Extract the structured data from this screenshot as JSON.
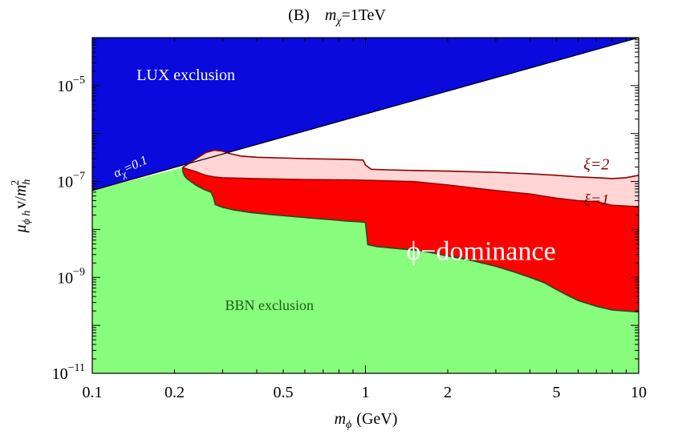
{
  "chart_data": {
    "type": "area",
    "title": "(B)   m_χ=1TeV",
    "title_parts": {
      "prefix": "(B)",
      "var": "m",
      "sub": "χ",
      "suffix": "=1TeV"
    },
    "xlabel": "m_ϕ (GeV)",
    "xlabel_parts": {
      "var": "m",
      "sub": "ϕ",
      "unit": "(GeV)"
    },
    "ylabel": "μ_ϕh v/m_h^2",
    "ylabel_parts": {
      "mu": "μ",
      "sub": "ϕ h",
      "mid": "v/",
      "m": "m",
      "hsub": "h",
      "sup": "2"
    },
    "xscale": "log",
    "yscale": "log",
    "xlim": [
      0.1,
      10
    ],
    "ylim": [
      1e-11,
      0.0001
    ],
    "x_ticks": [
      {
        "value": 0.1,
        "label": "0.1"
      },
      {
        "value": 0.2,
        "label": "0.2"
      },
      {
        "value": 0.5,
        "label": "0.5"
      },
      {
        "value": 1,
        "label": "1"
      },
      {
        "value": 2,
        "label": "2"
      },
      {
        "value": 5,
        "label": "5"
      },
      {
        "value": 10,
        "label": "10"
      }
    ],
    "y_ticks": [
      {
        "value": 1e-11,
        "base": "10",
        "exp": "−11"
      },
      {
        "value": 1e-09,
        "base": "10",
        "exp": "−9"
      },
      {
        "value": 1e-07,
        "base": "10",
        "exp": "−7"
      },
      {
        "value": 1e-05,
        "base": "10",
        "exp": "−5"
      }
    ],
    "lux_boundary": {
      "x": [
        0.1,
        10
      ],
      "y": [
        6.5e-08,
        0.0001
      ]
    },
    "bbn_boundary": {
      "x": [
        0.2139,
        0.215,
        0.218,
        0.222,
        0.227,
        0.232,
        0.238,
        0.245,
        0.253,
        0.262,
        0.272,
        0.278,
        0.282,
        0.29,
        0.3,
        0.33,
        0.38,
        0.45,
        0.55,
        0.65,
        0.75,
        0.85,
        0.95,
        1.0,
        1.02,
        1.1,
        1.3,
        1.6,
        2.0,
        2.5,
        3.0,
        3.5,
        4.0,
        4.5,
        5.0,
        5.5,
        6.0,
        7.0,
        8.0,
        10.0
      ],
      "y": [
        1.95e-07,
        1.55e-07,
        1.3e-07,
        1.15e-07,
        1.05e-07,
        9.5e-08,
        8.6e-08,
        7.8e-08,
        7.1e-08,
        6.5e-08,
        6e-08,
        4.6e-08,
        3.3e-08,
        3.1e-08,
        2.9e-08,
        2.55e-08,
        2.25e-08,
        2.05e-08,
        1.85e-08,
        1.7e-08,
        1.6e-08,
        1.5e-08,
        1.45e-08,
        1.4e-08,
        4.8e-09,
        4.4e-09,
        4e-09,
        3.6e-09,
        2.8e-09,
        2.2e-09,
        1.7e-09,
        1.3e-09,
        1e-09,
        7.8e-10,
        5.6e-10,
        4.2e-10,
        3.3e-10,
        2.5e-10,
        2.1e-10,
        1.9e-10
      ]
    },
    "series": [
      {
        "name": "ξ=1",
        "color": "#ff0000",
        "edge_color": "#8b0000",
        "x": [
          0.2139,
          0.24,
          0.26,
          0.28,
          0.3,
          0.4,
          0.6,
          0.9,
          1.1,
          1.5,
          2.0,
          3.0,
          4.0,
          5.0,
          6.0,
          7.0,
          8.0,
          10.0
        ],
        "y": [
          1.95e-07,
          1.6e-07,
          1.35e-07,
          1.25e-07,
          1.2e-07,
          1.15e-07,
          1.1e-07,
          1.08e-07,
          1.05e-07,
          1e-07,
          8.5e-08,
          6.5e-08,
          5.5e-08,
          4.5e-08,
          4e-08,
          3.8e-08,
          3.2e-08,
          3e-08
        ]
      },
      {
        "name": "ξ=2",
        "color": "#ffd5d5",
        "edge_color": "#8b0000",
        "x": [
          0.2139,
          0.26,
          0.28,
          0.3,
          0.32,
          0.35,
          0.4,
          0.6,
          0.85,
          0.98,
          1.0,
          1.05,
          1.2,
          1.5,
          2.0,
          3.0,
          4.0,
          5.0,
          6.0,
          7.0,
          8.0,
          9.0,
          10.0
        ],
        "y": [
          1.95e-07,
          4e-07,
          4.5e-07,
          4.3e-07,
          3.8e-07,
          3.4e-07,
          3.2e-07,
          3e-07,
          2.9e-07,
          2.8e-07,
          2.2e-07,
          1.8e-07,
          1.75e-07,
          1.7e-07,
          1.65e-07,
          1.55e-07,
          1.45e-07,
          1.35e-07,
          1.25e-07,
          1.2e-07,
          1.15e-07,
          1.2e-07,
          1.35e-07
        ]
      }
    ],
    "region_colors": {
      "lux": "#0a0adc",
      "bbn": "#88fc7c",
      "background": "#ffffff"
    },
    "annotations": [
      {
        "id": "lux",
        "text": "LUX exclusion",
        "x": 0.22,
        "y": 1.3e-05
      },
      {
        "id": "bbn",
        "text": "BBN exclusion",
        "x": 0.445,
        "y": 2.1e-10
      },
      {
        "id": "phi",
        "text": "ϕ−dominance",
        "x": 2.65,
        "y": 2.3e-09
      },
      {
        "id": "xi2",
        "text": "ξ=2",
        "x": 7.0,
        "y": 1.8e-07
      },
      {
        "id": "xi1",
        "text": "ξ=1",
        "x": 7.0,
        "y": 3.2e-08
      },
      {
        "id": "alpha",
        "text": "α_χ=0.1",
        "sym": "α",
        "sub": "χ",
        "rest": "=0.1",
        "x": 0.122,
        "y": 1.2e-07,
        "angle": -24.5
      }
    ],
    "grid": false,
    "legend": "none"
  }
}
